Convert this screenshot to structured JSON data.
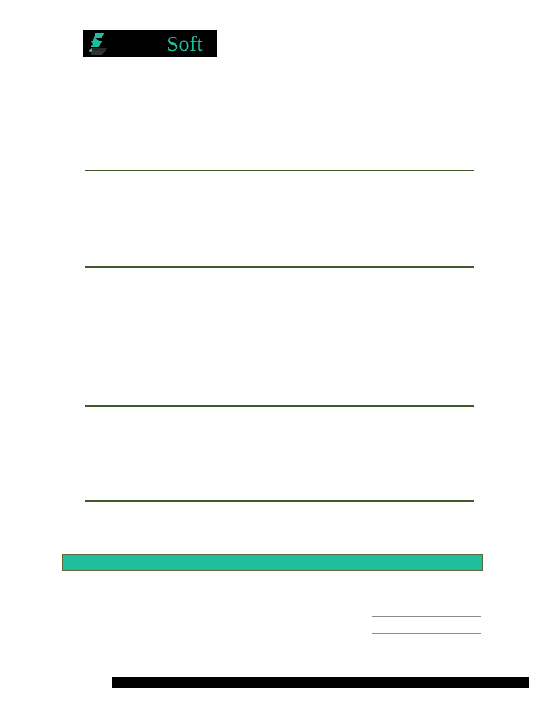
{
  "header": {
    "logo": {
      "text": "Soft",
      "icon": "lightning-s-icon",
      "text_color": "#1fbf9c",
      "background_color": "#000000"
    }
  },
  "colors": {
    "rule": "#3f5a2a",
    "band": "#1fbf9c",
    "footer": "#000000"
  }
}
